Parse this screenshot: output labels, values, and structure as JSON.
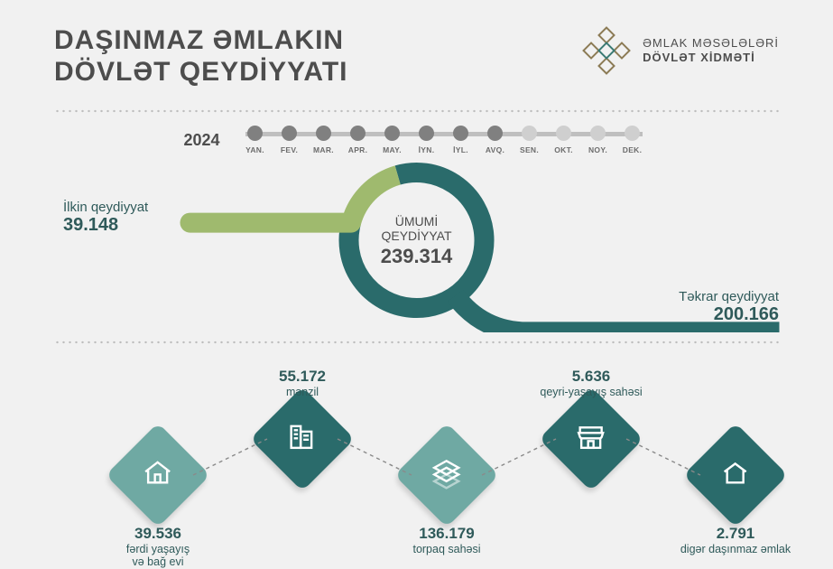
{
  "header": {
    "title_line1": "DAŞINMAZ ƏMLAKIN",
    "title_line2": "DÖVLƏT QEYDİYYATI",
    "agency_line1": "ƏMLAK MƏSƏLƏLƏRİ",
    "agency_line2": "DÖVLƏT XİDMƏTİ"
  },
  "colors": {
    "background": "#f1f1f1",
    "text_dark": "#4d4d4d",
    "teal": "#2a6b6b",
    "teal_light": "#6fa9a3",
    "olive": "#9fba6e",
    "month_active": "#808080",
    "month_inactive": "#cfcfcf"
  },
  "timeline": {
    "year": "2024",
    "months": [
      {
        "label": "YAN.",
        "active": true
      },
      {
        "label": "FEV.",
        "active": true
      },
      {
        "label": "MAR.",
        "active": true
      },
      {
        "label": "APR.",
        "active": true
      },
      {
        "label": "MAY.",
        "active": true
      },
      {
        "label": "İYN.",
        "active": true
      },
      {
        "label": "İYL.",
        "active": true
      },
      {
        "label": "AVQ.",
        "active": true
      },
      {
        "label": "SEN.",
        "active": false
      },
      {
        "label": "OKT.",
        "active": false
      },
      {
        "label": "NOY.",
        "active": false
      },
      {
        "label": "DEK.",
        "active": false
      }
    ]
  },
  "donut": {
    "center_label_line1": "ÜMUMİ",
    "center_label_line2": "QEYDİYYAT",
    "center_value": "239.314",
    "ring_thickness": 22,
    "radius": 75,
    "primary": {
      "label": "İlkin qeydiyyat",
      "value": "39.148",
      "fraction": 0.1636,
      "color": "#9fba6e"
    },
    "secondary": {
      "label": "Təkrar qeydiyyat",
      "value": "200.166",
      "fraction": 0.8364,
      "color": "#2a6b6b"
    }
  },
  "categories": [
    {
      "value": "39.536",
      "label": "fərdi yaşayış\nvə bağ evi",
      "icon": "house",
      "fill": "light",
      "label_pos": "below"
    },
    {
      "value": "55.172",
      "label": "mənzil",
      "icon": "building",
      "fill": "dark",
      "label_pos": "above"
    },
    {
      "value": "136.179",
      "label": "torpaq sahəsi",
      "icon": "land",
      "fill": "light",
      "label_pos": "below"
    },
    {
      "value": "5.636",
      "label": "qeyri-yaşayış sahəsi",
      "icon": "shop",
      "fill": "dark",
      "label_pos": "above"
    },
    {
      "value": "2.791",
      "label": "digər daşınmaz əmlak",
      "icon": "home-alt",
      "fill": "dark",
      "label_pos": "below"
    }
  ],
  "layout": {
    "diamond_size": 82,
    "diamond_positions_x": [
      40,
      200,
      360,
      520,
      680
    ],
    "diamond_y_low": 80,
    "diamond_y_high": 40
  }
}
